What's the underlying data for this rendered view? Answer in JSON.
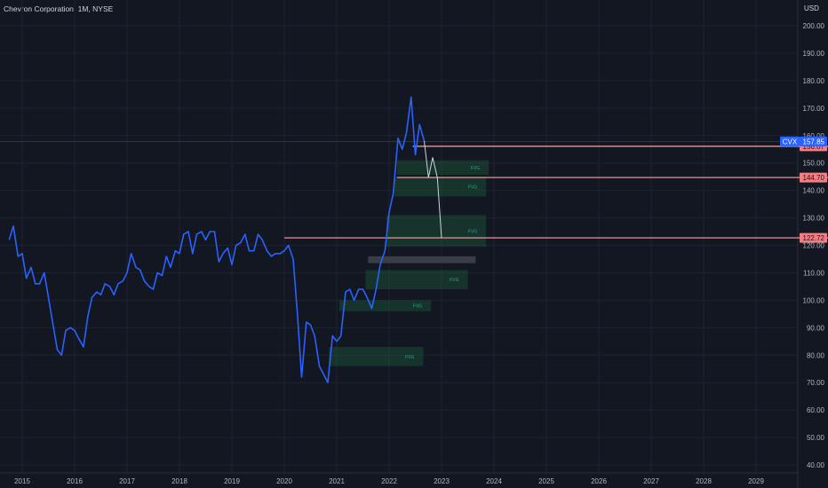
{
  "header": {
    "title": "Chevron Corporation, 1M, NYSE",
    "currency": "USD"
  },
  "chart_data": {
    "type": "line",
    "title": "Chevron Corporation, 1M, NYSE",
    "symbol": "CVX",
    "ylim": [
      37.5,
      210
    ],
    "xlim": [
      2014.75,
      2030.25
    ],
    "y_ticks": [
      40,
      50,
      60,
      70,
      80,
      90,
      100,
      110,
      120,
      130,
      140,
      150,
      160,
      170,
      180,
      190,
      200
    ],
    "y_tick_labels": [
      "40.00",
      "50.00",
      "60.00",
      "70.00",
      "80.00",
      "90.00",
      "100.00",
      "110.00",
      "120.00",
      "130.00",
      "140.00",
      "150.00",
      "160.00",
      "170.00",
      "180.00",
      "190.00",
      "200.00"
    ],
    "x_ticks": [
      2015,
      2016,
      2017,
      2018,
      2019,
      2020,
      2021,
      2022,
      2023,
      2024,
      2025,
      2026,
      2027,
      2028,
      2029
    ],
    "x_tick_labels": [
      "2015",
      "2016",
      "2017",
      "2018",
      "2019",
      "2020",
      "2021",
      "2022",
      "2023",
      "2024",
      "2025",
      "2026",
      "2027",
      "2028",
      "2029"
    ],
    "grid": true,
    "colors": {
      "background": "#131722",
      "grid": "#1f2331",
      "price_line": "#2962ff",
      "projection": "#d1d4dc",
      "level": "#f7a5a5",
      "level_label_bg": "#f77c80",
      "cvx_label_bg": "#2962ff",
      "fvg_fill": "#1b5e3a",
      "fvg_text": "#26a69a",
      "block_fill": "#3a3d46"
    },
    "series": [
      {
        "label": "CVX",
        "style": "price",
        "x": [
          2014.75,
          2014.83,
          2014.92,
          2015.0,
          2015.08,
          2015.17,
          2015.25,
          2015.33,
          2015.42,
          2015.5,
          2015.58,
          2015.67,
          2015.75,
          2015.83,
          2015.92,
          2016.0,
          2016.08,
          2016.17,
          2016.25,
          2016.33,
          2016.42,
          2016.5,
          2016.58,
          2016.67,
          2016.75,
          2016.83,
          2016.92,
          2017.0,
          2017.08,
          2017.17,
          2017.25,
          2017.33,
          2017.42,
          2017.5,
          2017.58,
          2017.67,
          2017.75,
          2017.83,
          2017.92,
          2018.0,
          2018.08,
          2018.17,
          2018.25,
          2018.33,
          2018.42,
          2018.5,
          2018.58,
          2018.67,
          2018.75,
          2018.83,
          2018.92,
          2019.0,
          2019.08,
          2019.17,
          2019.25,
          2019.33,
          2019.42,
          2019.5,
          2019.58,
          2019.67,
          2019.75,
          2019.83,
          2019.92,
          2020.0,
          2020.08,
          2020.17,
          2020.25,
          2020.33,
          2020.42,
          2020.5,
          2020.58,
          2020.67,
          2020.75,
          2020.83,
          2020.92,
          2021.0,
          2021.08,
          2021.17,
          2021.25,
          2021.33,
          2021.42,
          2021.5,
          2021.58,
          2021.67,
          2021.75,
          2021.83,
          2021.92,
          2022.0,
          2022.08,
          2022.17,
          2022.25,
          2022.33,
          2022.42,
          2022.5,
          2022.58,
          2022.67
        ],
        "y": [
          122,
          127,
          116,
          117,
          108,
          112,
          106,
          106,
          110,
          101,
          92,
          82,
          80,
          89,
          90,
          89,
          86,
          83,
          94,
          101,
          103,
          102,
          106,
          105,
          102,
          106,
          107,
          110,
          117,
          112,
          111,
          107,
          105,
          104,
          110,
          109,
          116,
          112,
          118,
          117,
          124,
          125,
          117,
          124,
          125,
          122,
          125,
          125,
          114,
          117,
          119,
          113,
          120,
          121,
          124,
          118,
          118,
          124,
          122,
          118,
          116,
          117,
          117,
          118,
          120,
          115,
          95,
          72,
          92,
          91,
          87,
          76,
          73,
          70,
          87,
          85,
          87,
          103,
          104,
          100,
          104,
          104,
          101,
          97,
          104,
          113,
          118,
          132,
          139,
          159,
          155,
          161,
          174,
          153,
          164,
          158
        ]
      },
      {
        "label": "",
        "style": "projection",
        "x": [
          2022.67,
          2022.75,
          2022.83,
          2022.92,
          2023.0
        ],
        "y": [
          158,
          144.7,
          152,
          144.7,
          122.7
        ]
      }
    ],
    "levels": [
      {
        "value": 156.07,
        "label": "156.07",
        "x_start": 2022.45
      },
      {
        "value": 144.7,
        "label": "144.70",
        "x_start": 2022.15
      },
      {
        "value": 122.72,
        "label": "122.72",
        "x_start": 2020.0
      }
    ],
    "current_price": {
      "value": 157.85,
      "label": "157.85",
      "symbol": "CVX"
    },
    "fvg_zones": [
      {
        "x0": 2022.15,
        "x1": 2023.9,
        "y0": 145.7,
        "y1": 151,
        "label": "FVG"
      },
      {
        "x0": 2022.1,
        "x1": 2023.85,
        "y0": 137.8,
        "y1": 145,
        "label": "FVG"
      },
      {
        "x0": 2021.95,
        "x1": 2023.85,
        "y0": 119.5,
        "y1": 131,
        "label": "FVG"
      },
      {
        "x0": 2021.55,
        "x1": 2023.5,
        "y0": 104,
        "y1": 111,
        "label": "FVG"
      },
      {
        "x0": 2021.05,
        "x1": 2022.8,
        "y0": 96,
        "y1": 100,
        "label": "FVG"
      },
      {
        "x0": 2020.85,
        "x1": 2022.65,
        "y0": 76,
        "y1": 83,
        "label": "FVG"
      }
    ],
    "blocks": [
      {
        "x0": 2021.6,
        "x1": 2023.65,
        "y0": 113.5,
        "y1": 116
      }
    ]
  }
}
